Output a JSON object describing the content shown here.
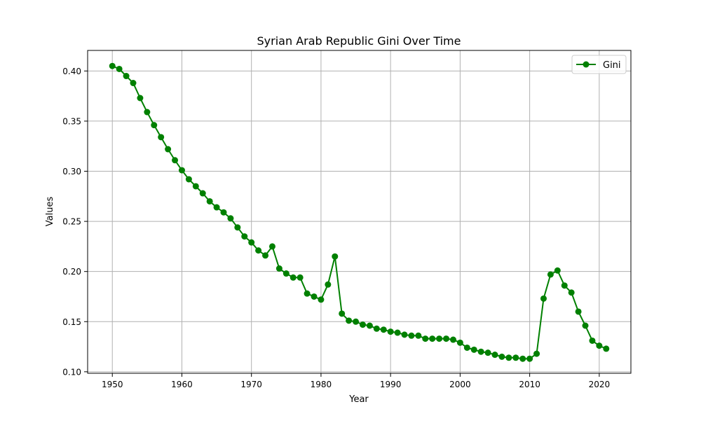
{
  "chart_data": {
    "type": "line",
    "title": "Syrian Arab Republic Gini Over Time",
    "xlabel": "Year",
    "ylabel": "Values",
    "xlim": [
      1946.45,
      2024.55
    ],
    "ylim": [
      0.0985,
      0.4205
    ],
    "xticks": [
      1950,
      1960,
      1970,
      1980,
      1990,
      2000,
      2010,
      2020
    ],
    "yticks": [
      0.1,
      0.15,
      0.2,
      0.25,
      0.3,
      0.35,
      0.4
    ],
    "xtick_labels": [
      "1950",
      "1960",
      "1970",
      "1980",
      "1990",
      "2000",
      "2010",
      "2020"
    ],
    "ytick_labels": [
      "0.10",
      "0.15",
      "0.20",
      "0.25",
      "0.30",
      "0.35",
      "0.40"
    ],
    "grid": true,
    "legend_position": "upper right",
    "series": [
      {
        "name": "Gini",
        "color": "#008000",
        "marker": "circle",
        "x": [
          1950,
          1951,
          1952,
          1953,
          1954,
          1955,
          1956,
          1957,
          1958,
          1959,
          1960,
          1961,
          1962,
          1963,
          1964,
          1965,
          1966,
          1967,
          1968,
          1969,
          1970,
          1971,
          1972,
          1973,
          1974,
          1975,
          1976,
          1977,
          1978,
          1979,
          1980,
          1981,
          1982,
          1983,
          1984,
          1985,
          1986,
          1987,
          1988,
          1989,
          1990,
          1991,
          1992,
          1993,
          1994,
          1995,
          1996,
          1997,
          1998,
          1999,
          2000,
          2001,
          2002,
          2003,
          2004,
          2005,
          2006,
          2007,
          2008,
          2009,
          2010,
          2011,
          2012,
          2013,
          2014,
          2015,
          2016,
          2017,
          2018,
          2019,
          2020,
          2021
        ],
        "y": [
          0.405,
          0.402,
          0.395,
          0.388,
          0.373,
          0.359,
          0.346,
          0.334,
          0.322,
          0.311,
          0.301,
          0.292,
          0.285,
          0.278,
          0.27,
          0.264,
          0.259,
          0.253,
          0.244,
          0.235,
          0.229,
          0.221,
          0.216,
          0.225,
          0.203,
          0.198,
          0.194,
          0.194,
          0.178,
          0.175,
          0.172,
          0.187,
          0.215,
          0.158,
          0.151,
          0.15,
          0.147,
          0.146,
          0.143,
          0.142,
          0.14,
          0.139,
          0.137,
          0.136,
          0.136,
          0.133,
          0.133,
          0.133,
          0.133,
          0.132,
          0.129,
          0.124,
          0.122,
          0.12,
          0.119,
          0.117,
          0.115,
          0.114,
          0.114,
          0.113,
          0.113,
          0.118,
          0.173,
          0.197,
          0.201,
          0.186,
          0.179,
          0.16,
          0.146,
          0.131,
          0.126,
          0.123
        ]
      }
    ]
  }
}
